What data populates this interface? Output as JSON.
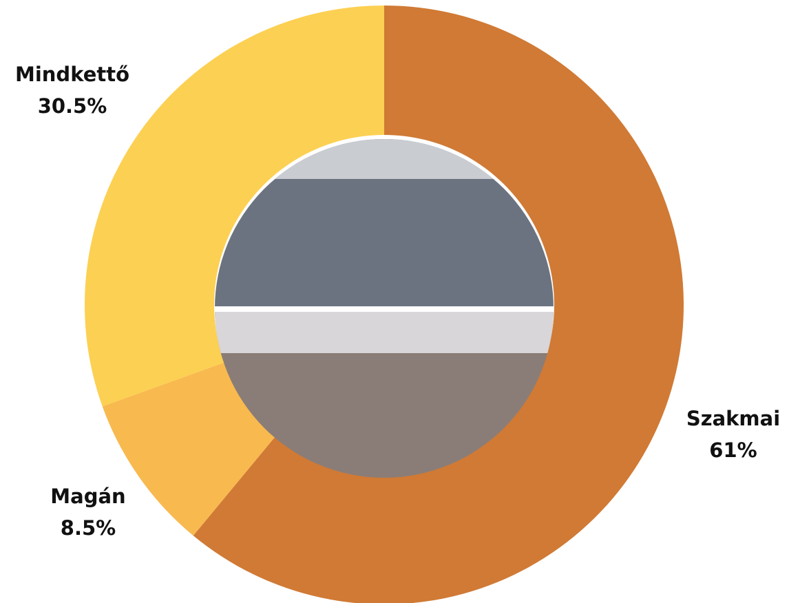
{
  "chart_data": {
    "type": "pie",
    "donut": true,
    "categories": [
      "Szakmai",
      "Magán",
      "Mindkettő"
    ],
    "values": [
      61,
      8.5,
      30.5
    ],
    "value_labels": [
      "61%",
      "8.5%",
      "30.5%"
    ],
    "colors": [
      "#d07a35",
      "#f8b94f",
      "#fcd052"
    ]
  }
}
